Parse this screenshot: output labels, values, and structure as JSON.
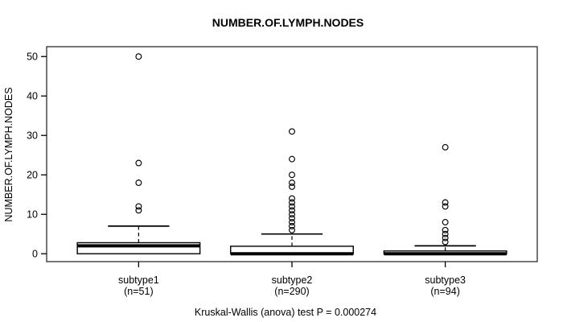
{
  "title": "NUMBER.OF.LYMPH.NODES",
  "y_axis": {
    "label": "NUMBER.OF.LYMPH.NODES"
  },
  "footer": {
    "annotation": "Kruskal-Wallis (anova) test P = 0.000274"
  },
  "chart_data": {
    "type": "boxplot",
    "title": "NUMBER.OF.LYMPH.NODES",
    "ylabel": "NUMBER.OF.LYMPH.NODES",
    "xlabel": "",
    "ylim": [
      -2,
      52.5
    ],
    "yticks": [
      0,
      10,
      20,
      30,
      40,
      50
    ],
    "grid": false,
    "legend": "none",
    "categories": [
      "subtype1",
      "subtype2",
      "subtype3"
    ],
    "groups": [
      {
        "label": "subtype1",
        "sublabel": "(n=51)",
        "n": 51,
        "whisker_low": 0,
        "q1": 0,
        "median": 2,
        "q3": 2.8,
        "whisker_high": 7,
        "outliers": [
          11,
          12,
          18,
          23,
          50
        ]
      },
      {
        "label": "subtype2",
        "sublabel": "(n=290)",
        "n": 290,
        "whisker_low": 0,
        "q1": 0,
        "median": 0,
        "q3": 1.9,
        "whisker_high": 5,
        "outliers": [
          6,
          7,
          8,
          9,
          10,
          11,
          12,
          13,
          14,
          17,
          18,
          20,
          24,
          31
        ]
      },
      {
        "label": "subtype3",
        "sublabel": "(n=94)",
        "n": 94,
        "whisker_low": 0,
        "q1": 0,
        "median": 0,
        "q3": 0.7,
        "whisker_high": 2,
        "outliers": [
          3,
          4,
          5,
          6,
          8,
          12,
          13,
          27
        ]
      }
    ],
    "annotation": "Kruskal-Wallis (anova) test P = 0.000274",
    "colors": {
      "line": "#000000",
      "box_fill": "#ffffff",
      "background": "#ffffff"
    }
  }
}
